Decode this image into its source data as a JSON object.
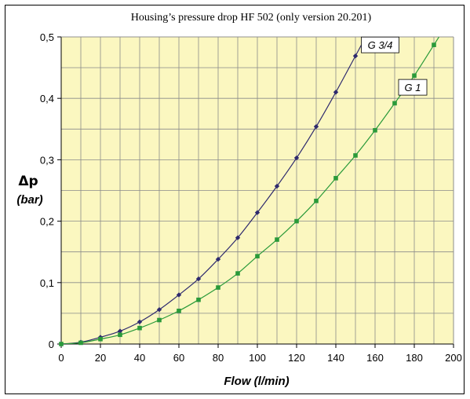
{
  "chart_data": {
    "type": "line",
    "title": "Housing’s pressure drop HF 502 (only version 20.201)",
    "xlabel": "Flow (l/min)",
    "ylabel_symbol": "Δp",
    "ylabel_unit": "(bar)",
    "xlim": [
      0,
      200
    ],
    "ylim": [
      0,
      0.5
    ],
    "x_ticks": [
      0,
      20,
      40,
      60,
      80,
      100,
      120,
      140,
      160,
      180,
      200
    ],
    "x_tick_labels": [
      "0",
      "20",
      "40",
      "60",
      "80",
      "100",
      "120",
      "140",
      "160",
      "180",
      "200"
    ],
    "y_ticks": [
      0,
      0.1,
      0.2,
      0.3,
      0.4,
      0.5
    ],
    "y_tick_labels": [
      "0",
      "0,1",
      "0,2",
      "0,3",
      "0,4",
      "0,5"
    ],
    "grid": true,
    "background": "#fbf7c0",
    "series": [
      {
        "name": "G 3/4",
        "color": "#2e2a6e",
        "marker": "diamond",
        "x": [
          0,
          10,
          20,
          30,
          40,
          50,
          60,
          70,
          80,
          90,
          100,
          110,
          120,
          130,
          140,
          150
        ],
        "y": [
          0,
          0.003,
          0.011,
          0.021,
          0.036,
          0.056,
          0.08,
          0.106,
          0.138,
          0.173,
          0.214,
          0.257,
          0.303,
          0.354,
          0.41,
          0.469
        ]
      },
      {
        "name": "G 1",
        "color": "#2a9a3a",
        "marker": "square",
        "x": [
          0,
          10,
          20,
          30,
          40,
          50,
          60,
          70,
          80,
          90,
          100,
          110,
          120,
          130,
          140,
          150,
          160,
          170,
          180,
          190
        ],
        "y": [
          0,
          0.002,
          0.008,
          0.015,
          0.026,
          0.039,
          0.054,
          0.072,
          0.092,
          0.115,
          0.143,
          0.17,
          0.2,
          0.233,
          0.27,
          0.307,
          0.348,
          0.392,
          0.437,
          0.487
        ]
      }
    ]
  }
}
